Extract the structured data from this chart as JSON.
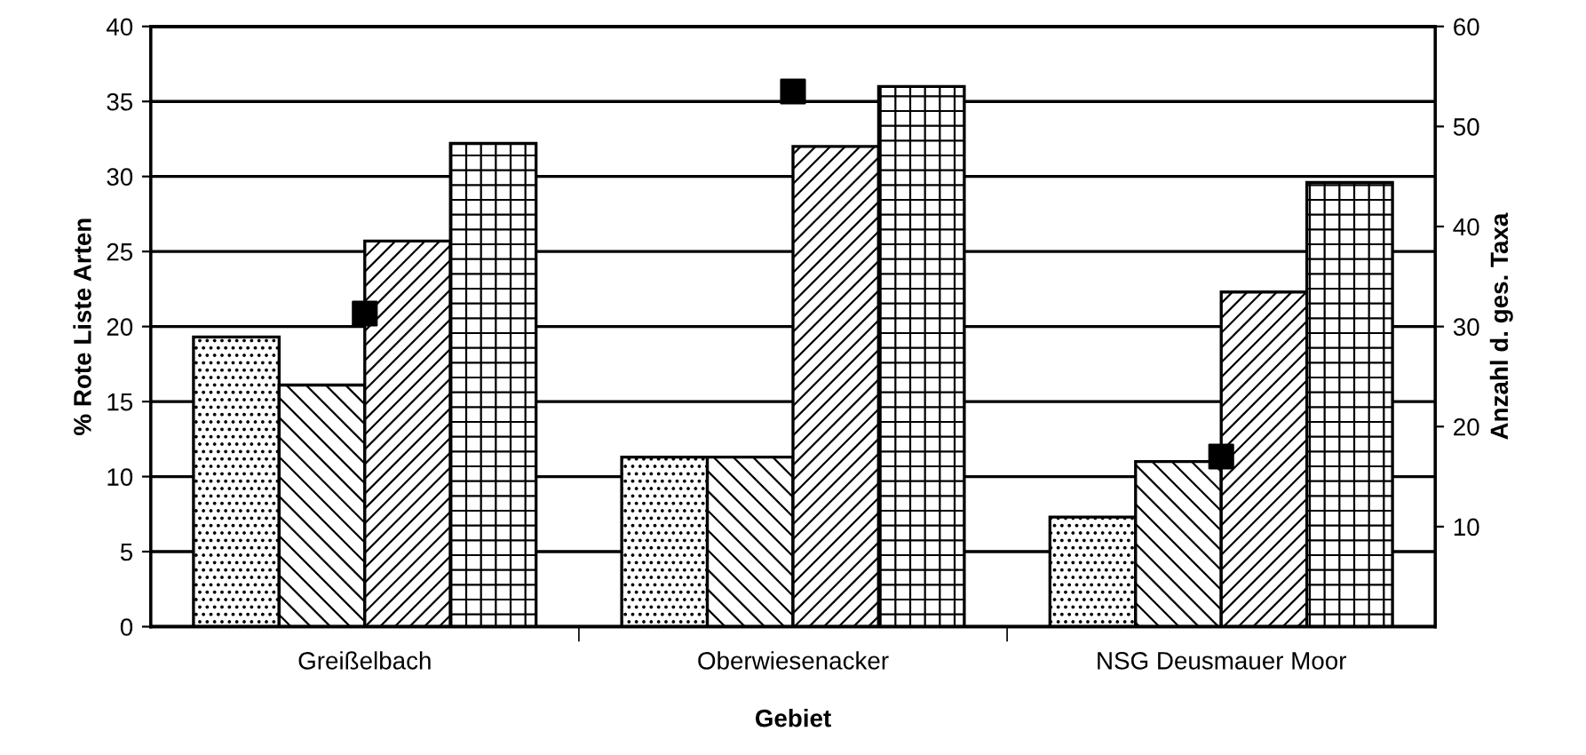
{
  "chart_data": {
    "type": "bar",
    "xlabel": "Gebiet",
    "ylabel": "% Rote Liste Arten",
    "y2label": "Anzahl d. ges. Taxa",
    "categories": [
      "Greißelbach",
      "Oberwiesenacker",
      "NSG Deusmauer Moor"
    ],
    "series": [
      {
        "color": "#000000",
        "values": [
          19.3,
          11.3,
          7.3
        ]
      },
      {
        "color": "#000000",
        "values": [
          16.1,
          11.3,
          11.0
        ]
      },
      {
        "color": "#000000",
        "values": [
          25.7,
          32.0,
          22.3
        ]
      },
      {
        "color": "#000000",
        "values": [
          32.2,
          36.0,
          29.6
        ]
      },
      {
        "type": "scatter",
        "axis": "y2",
        "marker": "square",
        "color": "#000000",
        "x": [
          "Greißelbach",
          "Oberwiesenacker",
          "NSG Deusmauer Moor"
        ],
        "values": [
          31.3,
          53.5,
          17.0
        ]
      }
    ],
    "ylim": [
      0,
      40
    ],
    "yticks": [
      0,
      5,
      10,
      15,
      20,
      25,
      30,
      35,
      40
    ],
    "y2lim": [
      0,
      60
    ],
    "y2ticks": [
      10,
      20,
      30,
      40,
      50,
      60
    ],
    "grid": "y"
  }
}
